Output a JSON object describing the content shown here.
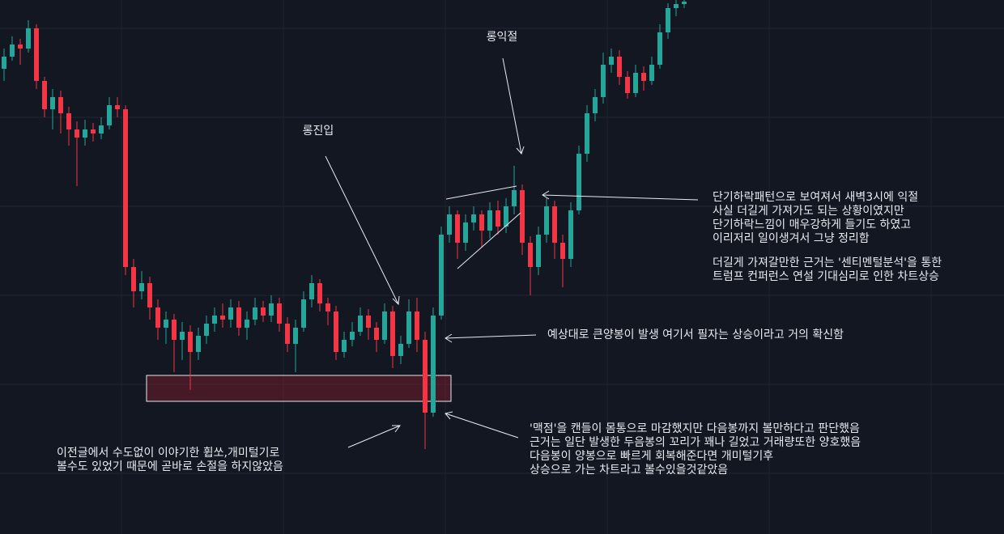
{
  "chart_data": {
    "type": "candlestick",
    "open": [
      575,
      590,
      605,
      600,
      625,
      560,
      525,
      540,
      520,
      500,
      490,
      500,
      495,
      505,
      530,
      525,
      330,
      300,
      310,
      280,
      255,
      265,
      240,
      250,
      225,
      245,
      260,
      270,
      265,
      280,
      255,
      265,
      280,
      270,
      285,
      260,
      235,
      255,
      290,
      310,
      285,
      275,
      225,
      240,
      250,
      270,
      255,
      240,
      275,
      220,
      235,
      275,
      240,
      150,
      270,
      370,
      395,
      360,
      385,
      395,
      375,
      400,
      380,
      405,
      425,
      360,
      330,
      370,
      405,
      360,
      340,
      400,
      470,
      520,
      540,
      580,
      590,
      565,
      545,
      570,
      560,
      580,
      620,
      650,
      655
    ],
    "high": [
      600,
      615,
      612,
      635,
      630,
      565,
      550,
      548,
      528,
      510,
      512,
      508,
      515,
      540,
      540,
      530,
      340,
      325,
      318,
      290,
      275,
      272,
      262,
      258,
      255,
      270,
      280,
      285,
      290,
      288,
      275,
      292,
      288,
      295,
      292,
      268,
      265,
      300,
      320,
      315,
      292,
      282,
      250,
      262,
      280,
      278,
      262,
      285,
      282,
      245,
      290,
      292,
      250,
      280,
      380,
      405,
      400,
      395,
      405,
      400,
      410,
      412,
      415,
      455,
      432,
      368,
      380,
      415,
      412,
      370,
      410,
      480,
      530,
      550,
      595,
      600,
      598,
      572,
      580,
      578,
      590,
      630,
      656,
      660,
      660
    ],
    "low": [
      560,
      585,
      580,
      595,
      550,
      515,
      500,
      495,
      480,
      430,
      480,
      485,
      488,
      500,
      515,
      320,
      280,
      290,
      265,
      240,
      235,
      200,
      215,
      178,
      215,
      235,
      250,
      255,
      255,
      245,
      240,
      258,
      262,
      262,
      250,
      225,
      200,
      250,
      280,
      275,
      258,
      215,
      218,
      232,
      245,
      240,
      225,
      235,
      205,
      210,
      230,
      225,
      105,
      145,
      265,
      360,
      340,
      350,
      375,
      355,
      365,
      370,
      372,
      395,
      345,
      295,
      320,
      360,
      340,
      305,
      330,
      395,
      460,
      510,
      532,
      570,
      555,
      538,
      540,
      548,
      555,
      575,
      612,
      640,
      650
    ],
    "close": [
      590,
      605,
      600,
      625,
      560,
      525,
      540,
      520,
      500,
      490,
      500,
      495,
      505,
      530,
      525,
      330,
      300,
      310,
      280,
      255,
      265,
      240,
      250,
      225,
      245,
      260,
      270,
      265,
      280,
      255,
      265,
      280,
      270,
      285,
      260,
      235,
      255,
      290,
      310,
      285,
      275,
      225,
      240,
      250,
      270,
      255,
      240,
      275,
      220,
      235,
      275,
      240,
      150,
      270,
      370,
      395,
      360,
      385,
      395,
      375,
      400,
      380,
      405,
      425,
      360,
      330,
      370,
      405,
      360,
      340,
      400,
      470,
      520,
      540,
      580,
      590,
      565,
      545,
      570,
      560,
      580,
      620,
      650,
      655,
      658
    ],
    "ylim": [
      0,
      660
    ],
    "up_color": "#26a69a",
    "down_color": "#f23645",
    "annotations": {
      "long_entry": "롱진입",
      "long_exit": "롱익절",
      "exit_reason": [
        "단기하락패턴으로 보여져서 새벽3시에 익절",
        "사실 더길게 가져가도 되는 상황이였지만",
        "단기하락느낌이 매우강하게 들기도 하였고",
        "이리저리 일이생겨서 그냥 정리함"
      ],
      "hold_reason": [
        "더길게 가져갈만한 근거는 '센티멘털분석'을 통한",
        "트럼프 컨퍼런스 연설 기대심리로 인한 차트상승"
      ],
      "big_candle": "예상대로 큰양봉이 발생 여기서 필자는 상승이라고 거의 확신함",
      "whipsaw": [
        "이전글에서 수도없이 이야기한 휩쏘,개미털기로",
        "볼수도 있었기 때문에 곧바로 손절을 하지않았음"
      ],
      "key_point": [
        "'맥점'을 캔들이 몸통으로 마감했지만 다음봉까지 볼만하다고 판단했음",
        "근거는 일단 발생한 두음봉의 꼬리가 꽤나 길었고 거래량또한 양호했음",
        "다음봉이 양봉으로 빠르게 회복해준다면 개미털기후",
        "상승으로 가는 차트라고 볼수있을것같았음"
      ]
    }
  }
}
